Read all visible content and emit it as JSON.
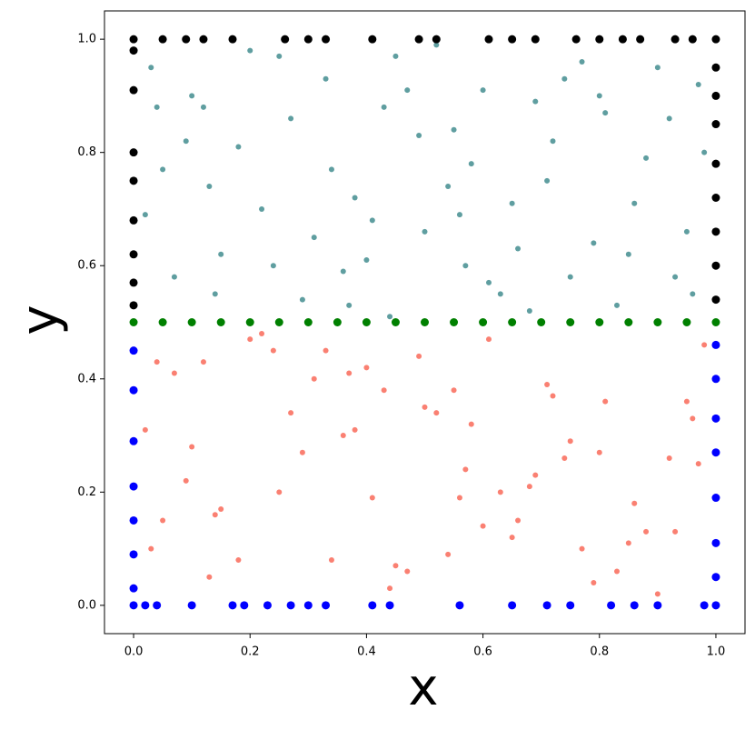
{
  "chart_data": {
    "type": "scatter",
    "xlabel": "x",
    "ylabel": "y",
    "xlim": [
      -0.05,
      1.05
    ],
    "ylim": [
      -0.05,
      1.05
    ],
    "xticks": [
      {
        "value": 0,
        "label": "0.0"
      },
      0.2,
      0.4,
      0.6,
      0.8,
      {
        "value": 1,
        "label": "1.0"
      }
    ],
    "yticks": [
      {
        "value": 0,
        "label": "0.0"
      },
      0.2,
      0.4,
      0.6,
      0.8,
      {
        "value": 1,
        "label": "1.0"
      }
    ],
    "grid": false,
    "series": [
      {
        "color": "#5f9ea0",
        "size": 3,
        "x": [
          0.03,
          0.12,
          0.25,
          0.38,
          0.47,
          0.55,
          0.66,
          0.74,
          0.88,
          0.95,
          0.07,
          0.18,
          0.29,
          0.41,
          0.52,
          0.61,
          0.71,
          0.83,
          0.92,
          0.15,
          0.33,
          0.44,
          0.58,
          0.69,
          0.79,
          0.97,
          0.05,
          0.22,
          0.36,
          0.49,
          0.63,
          0.77,
          0.86,
          0.1,
          0.27,
          0.4,
          0.54,
          0.68,
          0.81,
          0.93,
          0.02,
          0.14,
          0.31,
          0.45,
          0.57,
          0.72,
          0.85,
          0.98,
          0.09,
          0.2,
          0.34,
          0.5,
          0.6,
          0.75,
          0.9,
          0.04,
          0.24,
          0.43,
          0.65,
          0.8,
          0.96,
          0.13,
          0.37,
          0.56
        ],
        "values": [
          0.95,
          0.88,
          0.97,
          0.72,
          0.91,
          0.84,
          0.63,
          0.93,
          0.79,
          0.66,
          0.58,
          0.81,
          0.54,
          0.68,
          0.99,
          0.57,
          0.75,
          0.53,
          0.86,
          0.62,
          0.93,
          0.51,
          0.78,
          0.89,
          0.64,
          0.92,
          0.77,
          0.7,
          0.59,
          0.83,
          0.55,
          0.96,
          0.71,
          0.9,
          0.86,
          0.61,
          0.74,
          0.52,
          0.87,
          0.58,
          0.69,
          0.55,
          0.65,
          0.97,
          0.6,
          0.82,
          0.62,
          0.8,
          0.82,
          0.98,
          0.77,
          0.66,
          0.91,
          0.58,
          0.95,
          0.88,
          0.6,
          0.88,
          0.71,
          0.9,
          0.55,
          0.74,
          0.53,
          0.69
        ]
      },
      {
        "color": "#fa8072",
        "size": 3,
        "x": [
          0.24,
          0.43,
          0.65,
          0.8,
          0.96,
          0.13,
          0.37,
          0.56,
          0.09,
          0.2,
          0.34,
          0.5,
          0.6,
          0.75,
          0.9,
          0.04,
          0.02,
          0.14,
          0.31,
          0.45,
          0.57,
          0.72,
          0.85,
          0.98,
          0.86,
          0.1,
          0.27,
          0.4,
          0.54,
          0.68,
          0.81,
          0.93,
          0.79,
          0.97,
          0.05,
          0.22,
          0.36,
          0.49,
          0.63,
          0.77,
          0.71,
          0.83,
          0.92,
          0.15,
          0.33,
          0.44,
          0.58,
          0.69,
          0.88,
          0.95,
          0.07,
          0.18,
          0.29,
          0.41,
          0.52,
          0.61,
          0.03,
          0.12,
          0.25,
          0.38,
          0.47,
          0.55,
          0.66,
          0.74
        ],
        "values": [
          0.45,
          0.38,
          0.12,
          0.27,
          0.33,
          0.05,
          0.41,
          0.19,
          0.22,
          0.47,
          0.08,
          0.35,
          0.14,
          0.29,
          0.02,
          0.43,
          0.31,
          0.16,
          0.4,
          0.07,
          0.24,
          0.37,
          0.11,
          0.46,
          0.18,
          0.28,
          0.34,
          0.42,
          0.09,
          0.21,
          0.36,
          0.13,
          0.04,
          0.25,
          0.15,
          0.48,
          0.3,
          0.44,
          0.2,
          0.1,
          0.39,
          0.06,
          0.26,
          0.17,
          0.45,
          0.03,
          0.32,
          0.23,
          0.13,
          0.36,
          0.41,
          0.08,
          0.27,
          0.19,
          0.34,
          0.47,
          0.1,
          0.43,
          0.2,
          0.31,
          0.06,
          0.38,
          0.15,
          0.26
        ]
      },
      {
        "color": "#000000",
        "size": 4.5,
        "x": [
          0,
          0.05,
          0.09,
          0.12,
          0.17,
          0.26,
          0.3,
          0.33,
          0.41,
          0.49,
          0.52,
          0.61,
          0.65,
          0.69,
          0.76,
          0.8,
          0.84,
          0.87,
          0.93,
          0.96,
          1,
          0,
          0,
          0,
          0,
          0,
          0,
          0,
          0,
          1,
          1,
          1,
          1,
          1,
          1,
          1,
          1
        ],
        "values": [
          1,
          1,
          1,
          1,
          1,
          1,
          1,
          1,
          1,
          1,
          1,
          1,
          1,
          1,
          1,
          1,
          1,
          1,
          1,
          1,
          1,
          0.98,
          0.91,
          0.8,
          0.75,
          0.68,
          0.62,
          0.57,
          0.53,
          0.95,
          0.9,
          0.85,
          0.78,
          0.72,
          0.66,
          0.6,
          0.54
        ]
      },
      {
        "color": "#0000ff",
        "size": 4.5,
        "x": [
          0,
          0.02,
          0.04,
          0.1,
          0.17,
          0.19,
          0.23,
          0.27,
          0.3,
          0.33,
          0.41,
          0.44,
          0.56,
          0.65,
          0.71,
          0.75,
          0.82,
          0.86,
          0.9,
          0.98,
          1,
          0,
          0,
          0,
          0,
          0,
          0,
          0,
          1,
          1,
          1,
          1,
          1,
          1,
          1
        ],
        "values": [
          0,
          0,
          0,
          0,
          0,
          0,
          0,
          0,
          0,
          0,
          0,
          0,
          0,
          0,
          0,
          0,
          0,
          0,
          0,
          0,
          0,
          0.45,
          0.38,
          0.29,
          0.21,
          0.15,
          0.09,
          0.03,
          0.46,
          0.4,
          0.33,
          0.27,
          0.19,
          0.11,
          0.05
        ]
      },
      {
        "color": "#008000",
        "size": 4.5,
        "x": [
          0,
          0.05,
          0.1,
          0.15,
          0.2,
          0.25,
          0.3,
          0.35,
          0.4,
          0.45,
          0.5,
          0.55,
          0.6,
          0.65,
          0.7,
          0.75,
          0.8,
          0.85,
          0.9,
          0.95,
          1
        ],
        "values": [
          0.5,
          0.5,
          0.5,
          0.5,
          0.5,
          0.5,
          0.5,
          0.5,
          0.5,
          0.5,
          0.5,
          0.5,
          0.5,
          0.5,
          0.5,
          0.5,
          0.5,
          0.5,
          0.5,
          0.5,
          0.5
        ]
      }
    ]
  }
}
